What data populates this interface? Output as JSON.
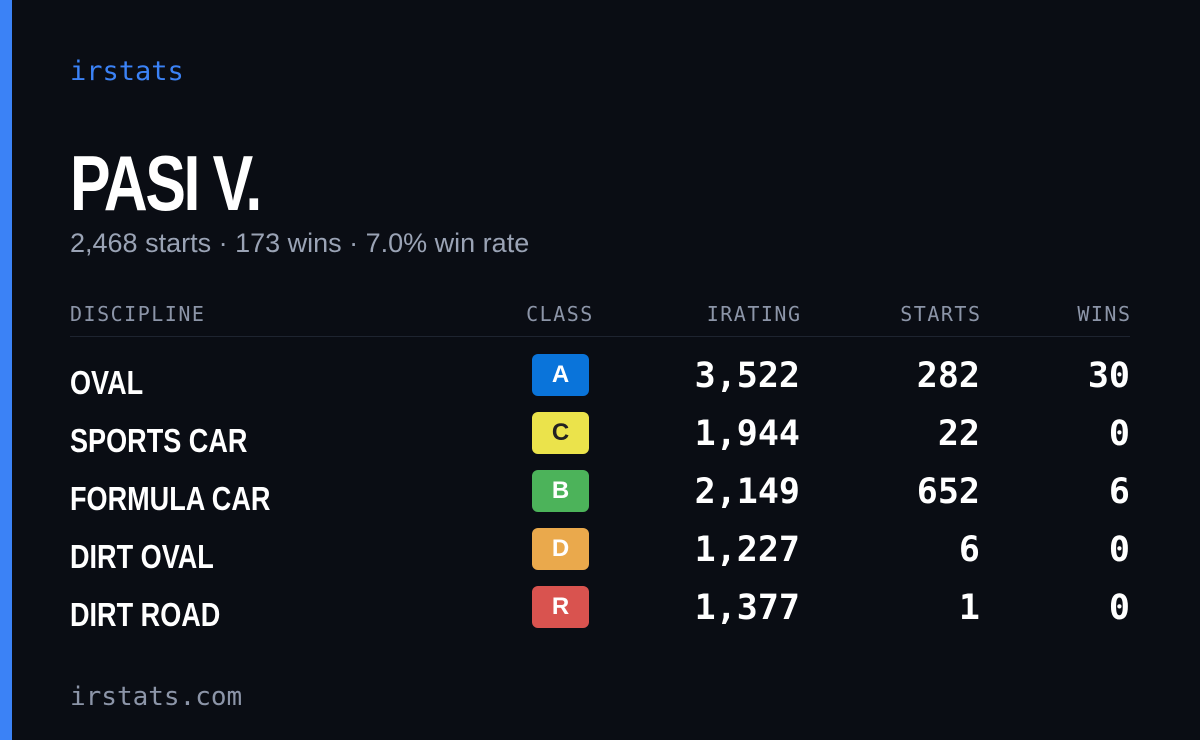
{
  "brand": "irstats",
  "driver": {
    "name": "PASI V.",
    "summary": "2,468 starts · 173 wins · 7.0% win rate"
  },
  "table": {
    "columns": [
      "DISCIPLINE",
      "CLASS",
      "IRATING",
      "STARTS",
      "WINS"
    ],
    "rows": [
      {
        "discipline": "OVAL",
        "class": "A",
        "class_color": "#0a74da",
        "class_text_color": "#ffffff",
        "irating": "3,522",
        "starts": "282",
        "wins": "30"
      },
      {
        "discipline": "SPORTS CAR",
        "class": "C",
        "class_color": "#ebe34b",
        "class_text_color": "#222222",
        "irating": "1,944",
        "starts": "22",
        "wins": "0"
      },
      {
        "discipline": "FORMULA CAR",
        "class": "B",
        "class_color": "#4cb35a",
        "class_text_color": "#ffffff",
        "irating": "2,149",
        "starts": "652",
        "wins": "6"
      },
      {
        "discipline": "DIRT OVAL",
        "class": "D",
        "class_color": "#eaa94c",
        "class_text_color": "#ffffff",
        "irating": "1,227",
        "starts": "6",
        "wins": "0"
      },
      {
        "discipline": "DIRT ROAD",
        "class": "R",
        "class_color": "#d9534f",
        "class_text_color": "#ffffff",
        "irating": "1,377",
        "starts": "1",
        "wins": "0"
      }
    ]
  },
  "footer": "irstats.com"
}
